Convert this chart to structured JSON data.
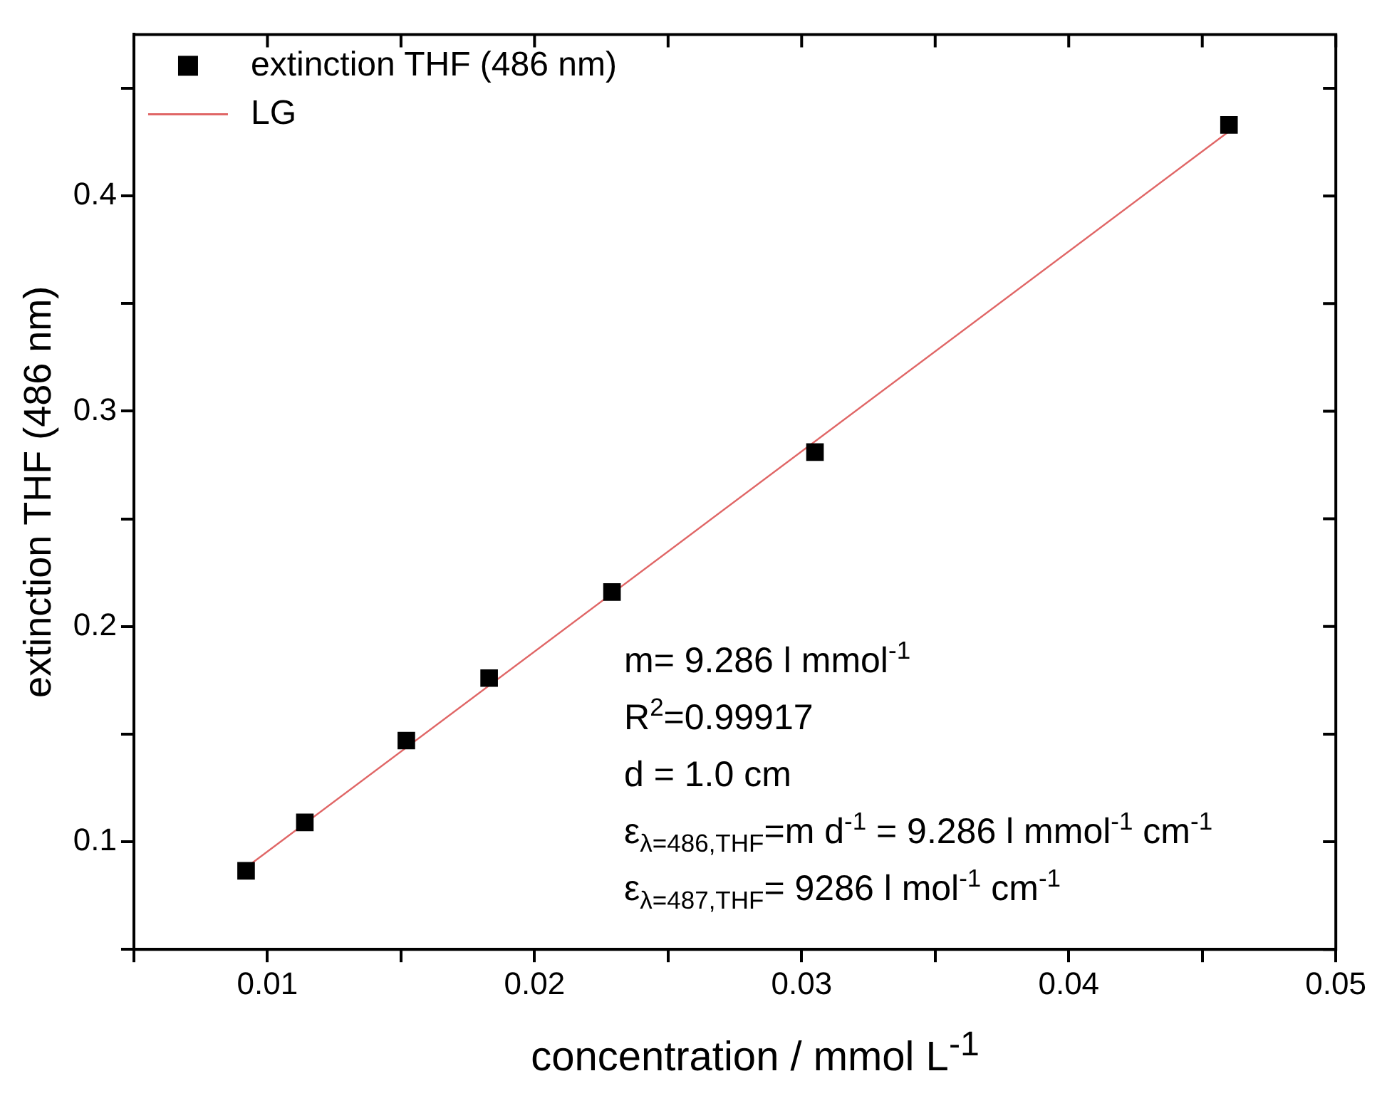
{
  "chart_data": {
    "type": "scatter",
    "xlabel": "concentration / mmol L$^{-1}$",
    "ylabel": "extinction THF (486 nm)",
    "xlim": [
      0.005,
      0.05
    ],
    "ylim": [
      0.05,
      0.475
    ],
    "xticks": [
      {
        "value": 0.005,
        "label": null
      },
      0.01,
      {
        "value": 0.015,
        "label": null
      },
      0.02,
      {
        "value": 0.025,
        "label": null
      },
      0.03,
      {
        "value": 0.035,
        "label": null
      },
      0.04,
      {
        "value": 0.045,
        "label": null
      },
      0.05
    ],
    "yticks": [
      {
        "value": 0.05,
        "label": null
      },
      0.1,
      {
        "value": 0.15,
        "label": null
      },
      0.2,
      {
        "value": 0.25,
        "label": null
      },
      0.3,
      {
        "value": 0.35,
        "label": null
      },
      0.4,
      {
        "value": 0.45,
        "label": null
      }
    ],
    "grid": false,
    "legend": "top left",
    "series": [
      {
        "name": "extinction THF (486 nm)",
        "color": "#000000",
        "marker": "square",
        "x": [
          0.0092,
          0.0114,
          0.0152,
          0.0183,
          0.0229,
          0.0305,
          0.046
        ],
        "values": [
          0.0865,
          0.109,
          0.147,
          0.176,
          0.216,
          0.281,
          0.433
        ]
      },
      {
        "name": "LG",
        "type": "line",
        "color": "#e06666",
        "marker": "none",
        "x": [
          0.0092,
          0.046
        ],
        "values": [
          0.088,
          0.43
        ]
      }
    ],
    "annotations": [
      "m= 9.286 l mmol$^{-1}$",
      "R$^{2}$=0.99917",
      "d = 1.0 cm",
      "ε$_{λ=486,THF}$=m d$^{-1}$ = 9.286 l mmol$^{-1}$ cm$^{-1}$",
      "ε$_{λ=487,THF}$= 9286 l mol$^{-1}$ cm$^{-1}$"
    ]
  }
}
